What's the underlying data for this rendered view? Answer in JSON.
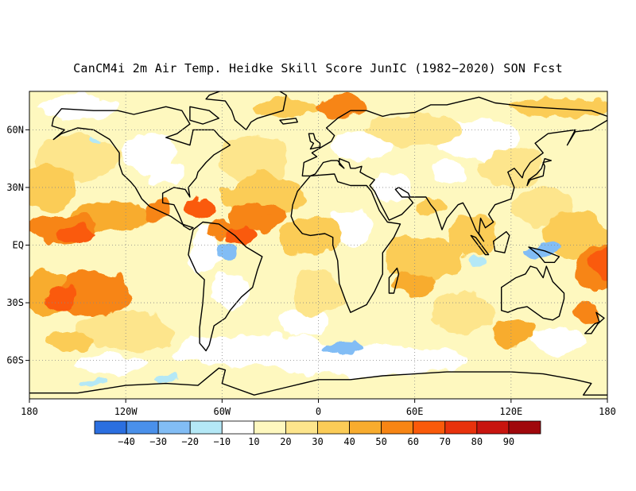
{
  "title": "CanCM4i 2m Air Temp. Heidke Skill Score JunIC (1982−2020) SON Fcst",
  "map": {
    "projection": "equirectangular",
    "lon_range": [
      -180,
      180
    ],
    "lat_range": [
      -80,
      80
    ],
    "gridlines": "dotted",
    "background_color": "#ffffff",
    "coastline_color": "#000000",
    "lon_ticks": [
      {
        "value": -180,
        "label": "180"
      },
      {
        "value": -120,
        "label": "120W"
      },
      {
        "value": -60,
        "label": "60W"
      },
      {
        "value": 0,
        "label": "0"
      },
      {
        "value": 60,
        "label": "60E"
      },
      {
        "value": 120,
        "label": "120E"
      },
      {
        "value": 180,
        "label": "180"
      }
    ],
    "lat_ticks": [
      {
        "value": 60,
        "label": "60N"
      },
      {
        "value": 30,
        "label": "30N"
      },
      {
        "value": 0,
        "label": "EQ"
      },
      {
        "value": -30,
        "label": "30S"
      },
      {
        "value": -60,
        "label": "60S"
      }
    ]
  },
  "colorbar": {
    "colors": [
      "#2b6fe0",
      "#4a90ea",
      "#82bdf5",
      "#b4e8f6",
      "#ffffff",
      "#fef8bf",
      "#fde58c",
      "#fbcc57",
      "#f8ac2e",
      "#f78514",
      "#fa5a0a",
      "#e8320c",
      "#c8150f",
      "#a0080c"
    ],
    "labels": [
      "−40",
      "−30",
      "−20",
      "−10",
      "10",
      "20",
      "30",
      "40",
      "50",
      "60",
      "70",
      "80",
      "90"
    ]
  },
  "chart_data": {
    "type": "heatmap",
    "variable": "Heidke Skill Score",
    "notes": "Global map of 2m air temperature Heidke skill score; predominantly positive (10-60) with maxima (60-80) in the eastern tropical Pacific, Caribbean, and western Pacific; small negative (-10 to -30) patches near the western tropical Pacific, northern South America and the Southern Ocean.",
    "regions": [
      {
        "name": "Caribbean",
        "lon": -75,
        "lat": 18,
        "value": 70
      },
      {
        "name": "eastern tropical Pacific",
        "lon": -150,
        "lat": 5,
        "value": 60
      },
      {
        "name": "southeast Pacific",
        "lon": -140,
        "lat": -30,
        "value": 60
      },
      {
        "name": "tropical Atlantic",
        "lon": -30,
        "lat": 15,
        "value": 50
      },
      {
        "name": "western Pacific east of Australia",
        "lon": 175,
        "lat": -12,
        "value": 65
      },
      {
        "name": "North Atlantic / Greenland Sea",
        "lon": 10,
        "lat": 70,
        "value": 50
      },
      {
        "name": "Indian Ocean",
        "lon": 75,
        "lat": -10,
        "value": 40
      },
      {
        "name": "Maritime Continent",
        "lon": 140,
        "lat": -3,
        "value": -20
      },
      {
        "name": "northern South America",
        "lon": -57,
        "lat": -3,
        "value": -20
      },
      {
        "name": "Southern Ocean south of Africa",
        "lon": 15,
        "lat": -53,
        "value": -20
      }
    ]
  }
}
